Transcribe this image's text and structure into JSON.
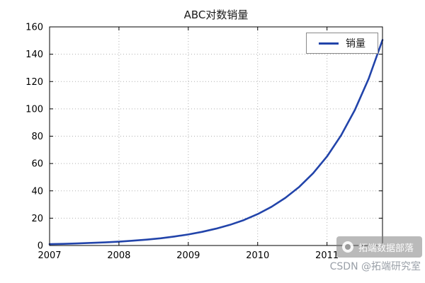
{
  "title": "ABC对数销量",
  "legend": {
    "label": "销量",
    "line_color": "#2244aa"
  },
  "watermark": {
    "badge_text": "拓端数据部落",
    "credit_text": "CSDN @拓端研究室"
  },
  "chart_data": {
    "type": "line",
    "title": "ABC对数销量",
    "xlabel": "",
    "ylabel": "",
    "xlim": [
      2007,
      2011.8
    ],
    "ylim": [
      0,
      160
    ],
    "xticks": [
      2007,
      2008,
      2009,
      2010,
      2011
    ],
    "yticks": [
      0,
      20,
      40,
      60,
      80,
      100,
      120,
      140,
      160
    ],
    "grid": true,
    "grid_style": "dotted",
    "legend_position": "upper right",
    "series": [
      {
        "name": "销量",
        "color": "#2244aa",
        "x": [
          2007.0,
          2007.2,
          2007.4,
          2007.6,
          2007.8,
          2008.0,
          2008.2,
          2008.4,
          2008.6,
          2008.8,
          2009.0,
          2009.2,
          2009.4,
          2009.6,
          2009.8,
          2010.0,
          2010.2,
          2010.4,
          2010.6,
          2010.8,
          2011.0,
          2011.2,
          2011.4,
          2011.6,
          2011.8
        ],
        "y": [
          1.0,
          1.2,
          1.5,
          1.9,
          2.3,
          2.8,
          3.5,
          4.3,
          5.3,
          6.6,
          8.1,
          10.0,
          12.3,
          15.1,
          18.6,
          23.0,
          28.3,
          34.9,
          42.9,
          52.9,
          65.2,
          80.4,
          99.0,
          122.0,
          150.4
        ]
      }
    ]
  }
}
